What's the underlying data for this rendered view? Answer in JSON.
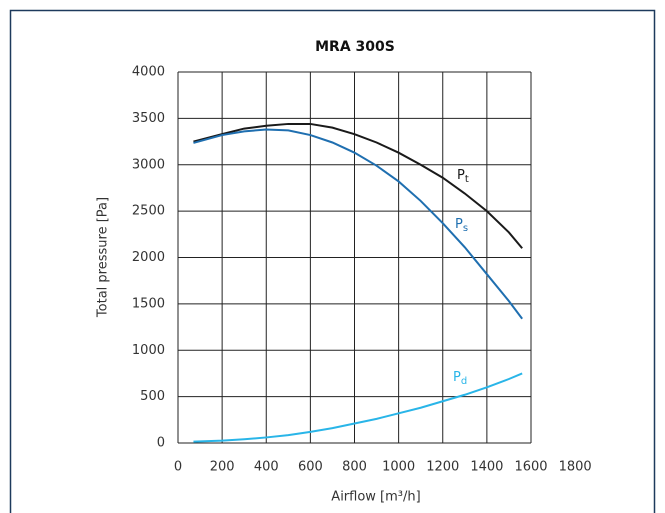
{
  "chart_data": {
    "type": "line",
    "title": "MRA 300S",
    "x_label": "Airflow [m³/h]",
    "y_label": "Total pressure [Pa]",
    "x": [
      70,
      200,
      300,
      400,
      500,
      600,
      700,
      800,
      900,
      1000,
      1100,
      1200,
      1300,
      1400,
      1500,
      1560
    ],
    "series": [
      {
        "label": [
          "P",
          "t"
        ],
        "color": "#1a1a1a",
        "values": [
          3250,
          3330,
          3390,
          3420,
          3440,
          3440,
          3400,
          3330,
          3240,
          3130,
          3000,
          2860,
          2690,
          2500,
          2270,
          2100
        ]
      },
      {
        "label": [
          "P",
          "s"
        ],
        "color": "#1f6fb0",
        "values": [
          3235,
          3320,
          3360,
          3380,
          3370,
          3320,
          3240,
          3130,
          2990,
          2820,
          2610,
          2370,
          2110,
          1820,
          1530,
          1340
        ]
      },
      {
        "label": [
          "P",
          "d"
        ],
        "color": "#29b5e8",
        "values": [
          15,
          25,
          40,
          60,
          85,
          120,
          160,
          210,
          260,
          320,
          380,
          450,
          520,
          600,
          690,
          750
        ]
      }
    ],
    "xlim": [
      0,
      1600
    ],
    "xticks": [
      0,
      200,
      400,
      600,
      800,
      1000,
      1200,
      1400,
      1600,
      1800
    ],
    "ylim": [
      0,
      4000
    ],
    "yticks": [
      0,
      500,
      1000,
      1500,
      2000,
      2500,
      3000,
      3500,
      4000
    ],
    "grid": true
  }
}
